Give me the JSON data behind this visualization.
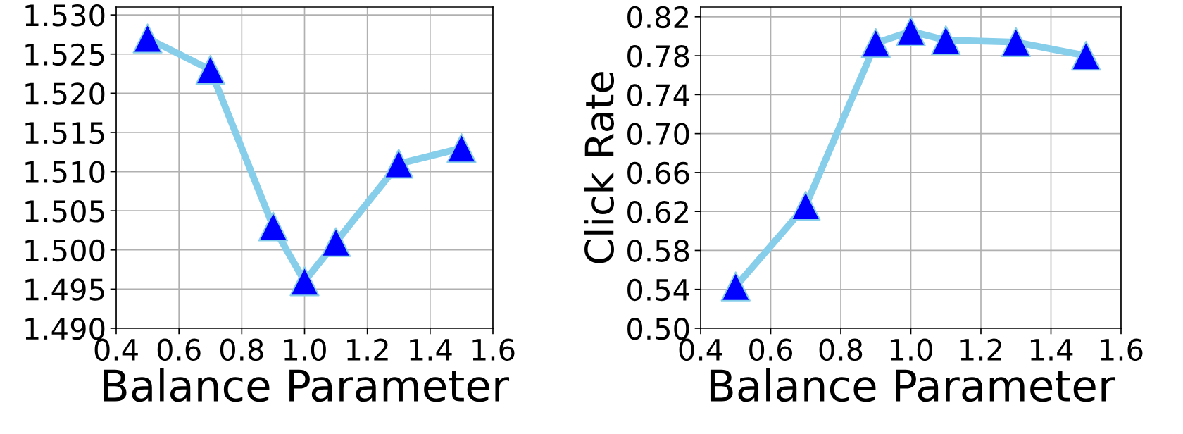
{
  "chart_data": [
    {
      "type": "line",
      "xlabel": "Balance Parameter",
      "x": [
        0.5,
        0.7,
        0.9,
        1.0,
        1.1,
        1.3,
        1.5
      ],
      "series": [
        {
          "color": "#87ceeb",
          "colors": [
            "#0000ff",
            "#0000ff",
            "#0000ff",
            "#0000ff",
            "#0000ff",
            "#0000ff",
            "#0000ff"
          ],
          "values": [
            1.527,
            1.523,
            1.503,
            1.496,
            1.501,
            1.511,
            1.513
          ]
        }
      ],
      "xlim": [
        0.4,
        1.6
      ],
      "xticks": [
        {
          "value": 0.4,
          "label": "0.4"
        },
        {
          "value": 0.6,
          "label": "0.6"
        },
        {
          "value": 0.8,
          "label": "0.8"
        },
        {
          "value": 1.0,
          "label": "1.0"
        },
        {
          "value": 1.2,
          "label": "1.2"
        },
        {
          "value": 1.4,
          "label": "1.4"
        },
        {
          "value": 1.6,
          "label": "1.6"
        }
      ],
      "ylim": [
        1.49,
        1.531
      ],
      "yticks": [
        {
          "value": 1.49,
          "label": "1.490"
        },
        {
          "value": 1.495,
          "label": "1.495"
        },
        {
          "value": 1.5,
          "label": "1.500"
        },
        {
          "value": 1.505,
          "label": "1.505"
        },
        {
          "value": 1.51,
          "label": "1.510"
        },
        {
          "value": 1.515,
          "label": "1.515"
        },
        {
          "value": 1.52,
          "label": "1.520"
        },
        {
          "value": 1.525,
          "label": "1.525"
        },
        {
          "value": 1.53,
          "label": "1.530"
        }
      ],
      "grid": true,
      "marker": "triangle",
      "line_style": "solid"
    },
    {
      "type": "line",
      "xlabel": "Balance Parameter",
      "ylabel": "Click Rate",
      "x": [
        0.5,
        0.7,
        0.9,
        1.0,
        1.1,
        1.3,
        1.5
      ],
      "series": [
        {
          "color": "#87ceeb",
          "colors": [
            "#0000ff",
            "#0000ff",
            "#0000ff",
            "#0000ff",
            "#0000ff",
            "#0000ff",
            "#0000ff"
          ],
          "values": [
            0.543,
            0.626,
            0.793,
            0.805,
            0.796,
            0.794,
            0.78
          ]
        }
      ],
      "xlim": [
        0.4,
        1.6
      ],
      "xticks": [
        {
          "value": 0.4,
          "label": "0.4"
        },
        {
          "value": 0.6,
          "label": "0.6"
        },
        {
          "value": 0.8,
          "label": "0.8"
        },
        {
          "value": 1.0,
          "label": "1.0"
        },
        {
          "value": 1.2,
          "label": "1.2"
        },
        {
          "value": 1.4,
          "label": "1.4"
        },
        {
          "value": 1.6,
          "label": "1.6"
        }
      ],
      "ylim": [
        0.5,
        0.83
      ],
      "yticks": [
        {
          "value": 0.5,
          "label": "0.50"
        },
        {
          "value": 0.54,
          "label": "0.54"
        },
        {
          "value": 0.58,
          "label": "0.58"
        },
        {
          "value": 0.62,
          "label": "0.62"
        },
        {
          "value": 0.66,
          "label": "0.66"
        },
        {
          "value": 0.7,
          "label": "0.70"
        },
        {
          "value": 0.74,
          "label": "0.74"
        },
        {
          "value": 0.78,
          "label": "0.78"
        },
        {
          "value": 0.82,
          "label": "0.82"
        }
      ],
      "grid": true,
      "marker": "triangle",
      "line_style": "solid"
    }
  ]
}
